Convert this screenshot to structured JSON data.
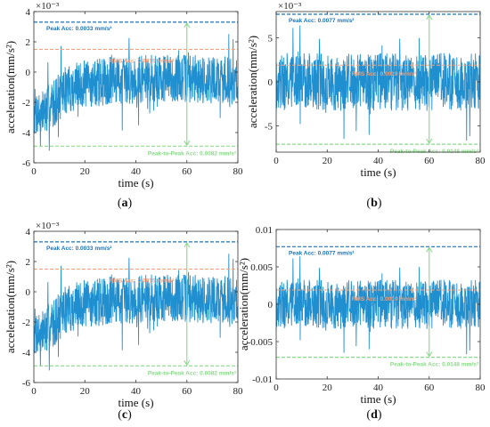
{
  "colors": {
    "signal": "#1f8fd0",
    "peak": "#1a73b8",
    "rms": "#f5a07a",
    "p2p": "#8bd98b",
    "arrow": "#8bd98b",
    "axis": "#333333"
  },
  "chart_data": [
    {
      "type": "line",
      "panel_label": "(a)",
      "xlabel": "time (s)",
      "ylabel": "acceleration(mm/s²)",
      "multiplier": "×10⁻³",
      "xlim": [
        0,
        80
      ],
      "ylim": [
        -6,
        4
      ],
      "xticks": [
        0,
        20,
        40,
        60,
        80
      ],
      "yticks": [
        -6,
        -4,
        -2,
        0,
        2,
        4
      ],
      "ytick_labels": [
        "-6",
        "-4",
        "-2",
        "0",
        "2",
        "4"
      ],
      "peak_level": 3.3,
      "rms_level": 1.5,
      "p2p_low": -4.9,
      "peak_label": "Peak Acc: 0.0033 mm/s²",
      "rms_label": "RMS Acc: 0.0015 mm/s²",
      "p2p_label": "Peak-to-Peak Acc: 0.0082 mm/s²",
      "arrow_x": 60,
      "trend": [
        [
          0,
          -2.6
        ],
        [
          3,
          -2.8
        ],
        [
          8,
          -2.0
        ],
        [
          12,
          -1.2
        ],
        [
          20,
          -0.8
        ],
        [
          30,
          -0.6
        ],
        [
          40,
          -0.5
        ],
        [
          50,
          -0.4
        ],
        [
          60,
          -0.4
        ],
        [
          70,
          -0.5
        ],
        [
          80,
          -0.6
        ]
      ],
      "spread": 1.6,
      "seed": 7
    },
    {
      "type": "line",
      "panel_label": "(b)",
      "xlabel": "time (s)",
      "ylabel": "acceleration(mm/s²)",
      "multiplier": "×10⁻³",
      "xlim": [
        0,
        80
      ],
      "ylim": [
        -8,
        8
      ],
      "xticks": [
        0,
        20,
        40,
        60,
        80
      ],
      "yticks": [
        -5,
        0,
        5
      ],
      "ytick_labels": [
        "-5",
        "0",
        "5"
      ],
      "peak_level": 7.7,
      "rms_level": 1.9,
      "p2p_low": -7.1,
      "peak_label": "Peak Acc: 0.0077 mm/s²",
      "rms_label": "RMS Acc: 0.0019 mm/s²",
      "p2p_label": "Peak-to-Peak Acc: 0.0148 mm/s²",
      "arrow_x": 60,
      "trend": [
        [
          0,
          0
        ],
        [
          80,
          0
        ]
      ],
      "spread": 3.3,
      "seed": 19
    },
    {
      "type": "line",
      "panel_label": "(c)",
      "xlabel": "time (s)",
      "ylabel": "acceleration(mm/s²)",
      "multiplier": "×10⁻³",
      "xlim": [
        0,
        80
      ],
      "ylim": [
        -6,
        4
      ],
      "xticks": [
        0,
        20,
        40,
        60,
        80
      ],
      "yticks": [
        -6,
        -4,
        -2,
        0,
        2,
        4
      ],
      "ytick_labels": [
        "-6",
        "-4",
        "-2",
        "0",
        "2",
        "4"
      ],
      "peak_level": 3.3,
      "rms_level": 1.5,
      "p2p_low": -4.9,
      "peak_label": "Peak Acc: 0.0033 mm/s²",
      "rms_label": "RMS Acc: 0.0015 mm/s²",
      "p2p_label": "Peak-to-Peak Acc: 0.0082 mm/s²",
      "arrow_x": 60,
      "trend": [
        [
          0,
          -2.6
        ],
        [
          3,
          -2.8
        ],
        [
          8,
          -2.0
        ],
        [
          12,
          -1.2
        ],
        [
          20,
          -0.8
        ],
        [
          30,
          -0.6
        ],
        [
          40,
          -0.5
        ],
        [
          50,
          -0.4
        ],
        [
          60,
          -0.4
        ],
        [
          70,
          -0.5
        ],
        [
          80,
          -0.6
        ]
      ],
      "spread": 1.6,
      "seed": 7
    },
    {
      "type": "line",
      "panel_label": "(d)",
      "xlabel": "time (s)",
      "ylabel": "acceleration(mm/s²)",
      "multiplier": "",
      "xlim": [
        0,
        80
      ],
      "ylim": [
        -0.01,
        0.01
      ],
      "xticks": [
        0,
        20,
        40,
        60,
        80
      ],
      "yticks": [
        -0.01,
        -0.005,
        0,
        0.005,
        0.01
      ],
      "ytick_labels": [
        "-0.01",
        "-0.005",
        "0",
        "0.005",
        "0.01"
      ],
      "peak_level": 0.0077,
      "rms_level": 0.0019,
      "p2p_low": -0.0071,
      "peak_label": "Peak Acc: 0.0077 mm/s²",
      "rms_label": "RMS Acc: 0.0019 mm/s²",
      "p2p_label": "Peak-to-Peak Acc: 0.0148 mm/s²",
      "arrow_x": 60,
      "trend": [
        [
          0,
          0
        ],
        [
          80,
          0
        ]
      ],
      "spread": 0.0033,
      "seed": 19
    }
  ]
}
